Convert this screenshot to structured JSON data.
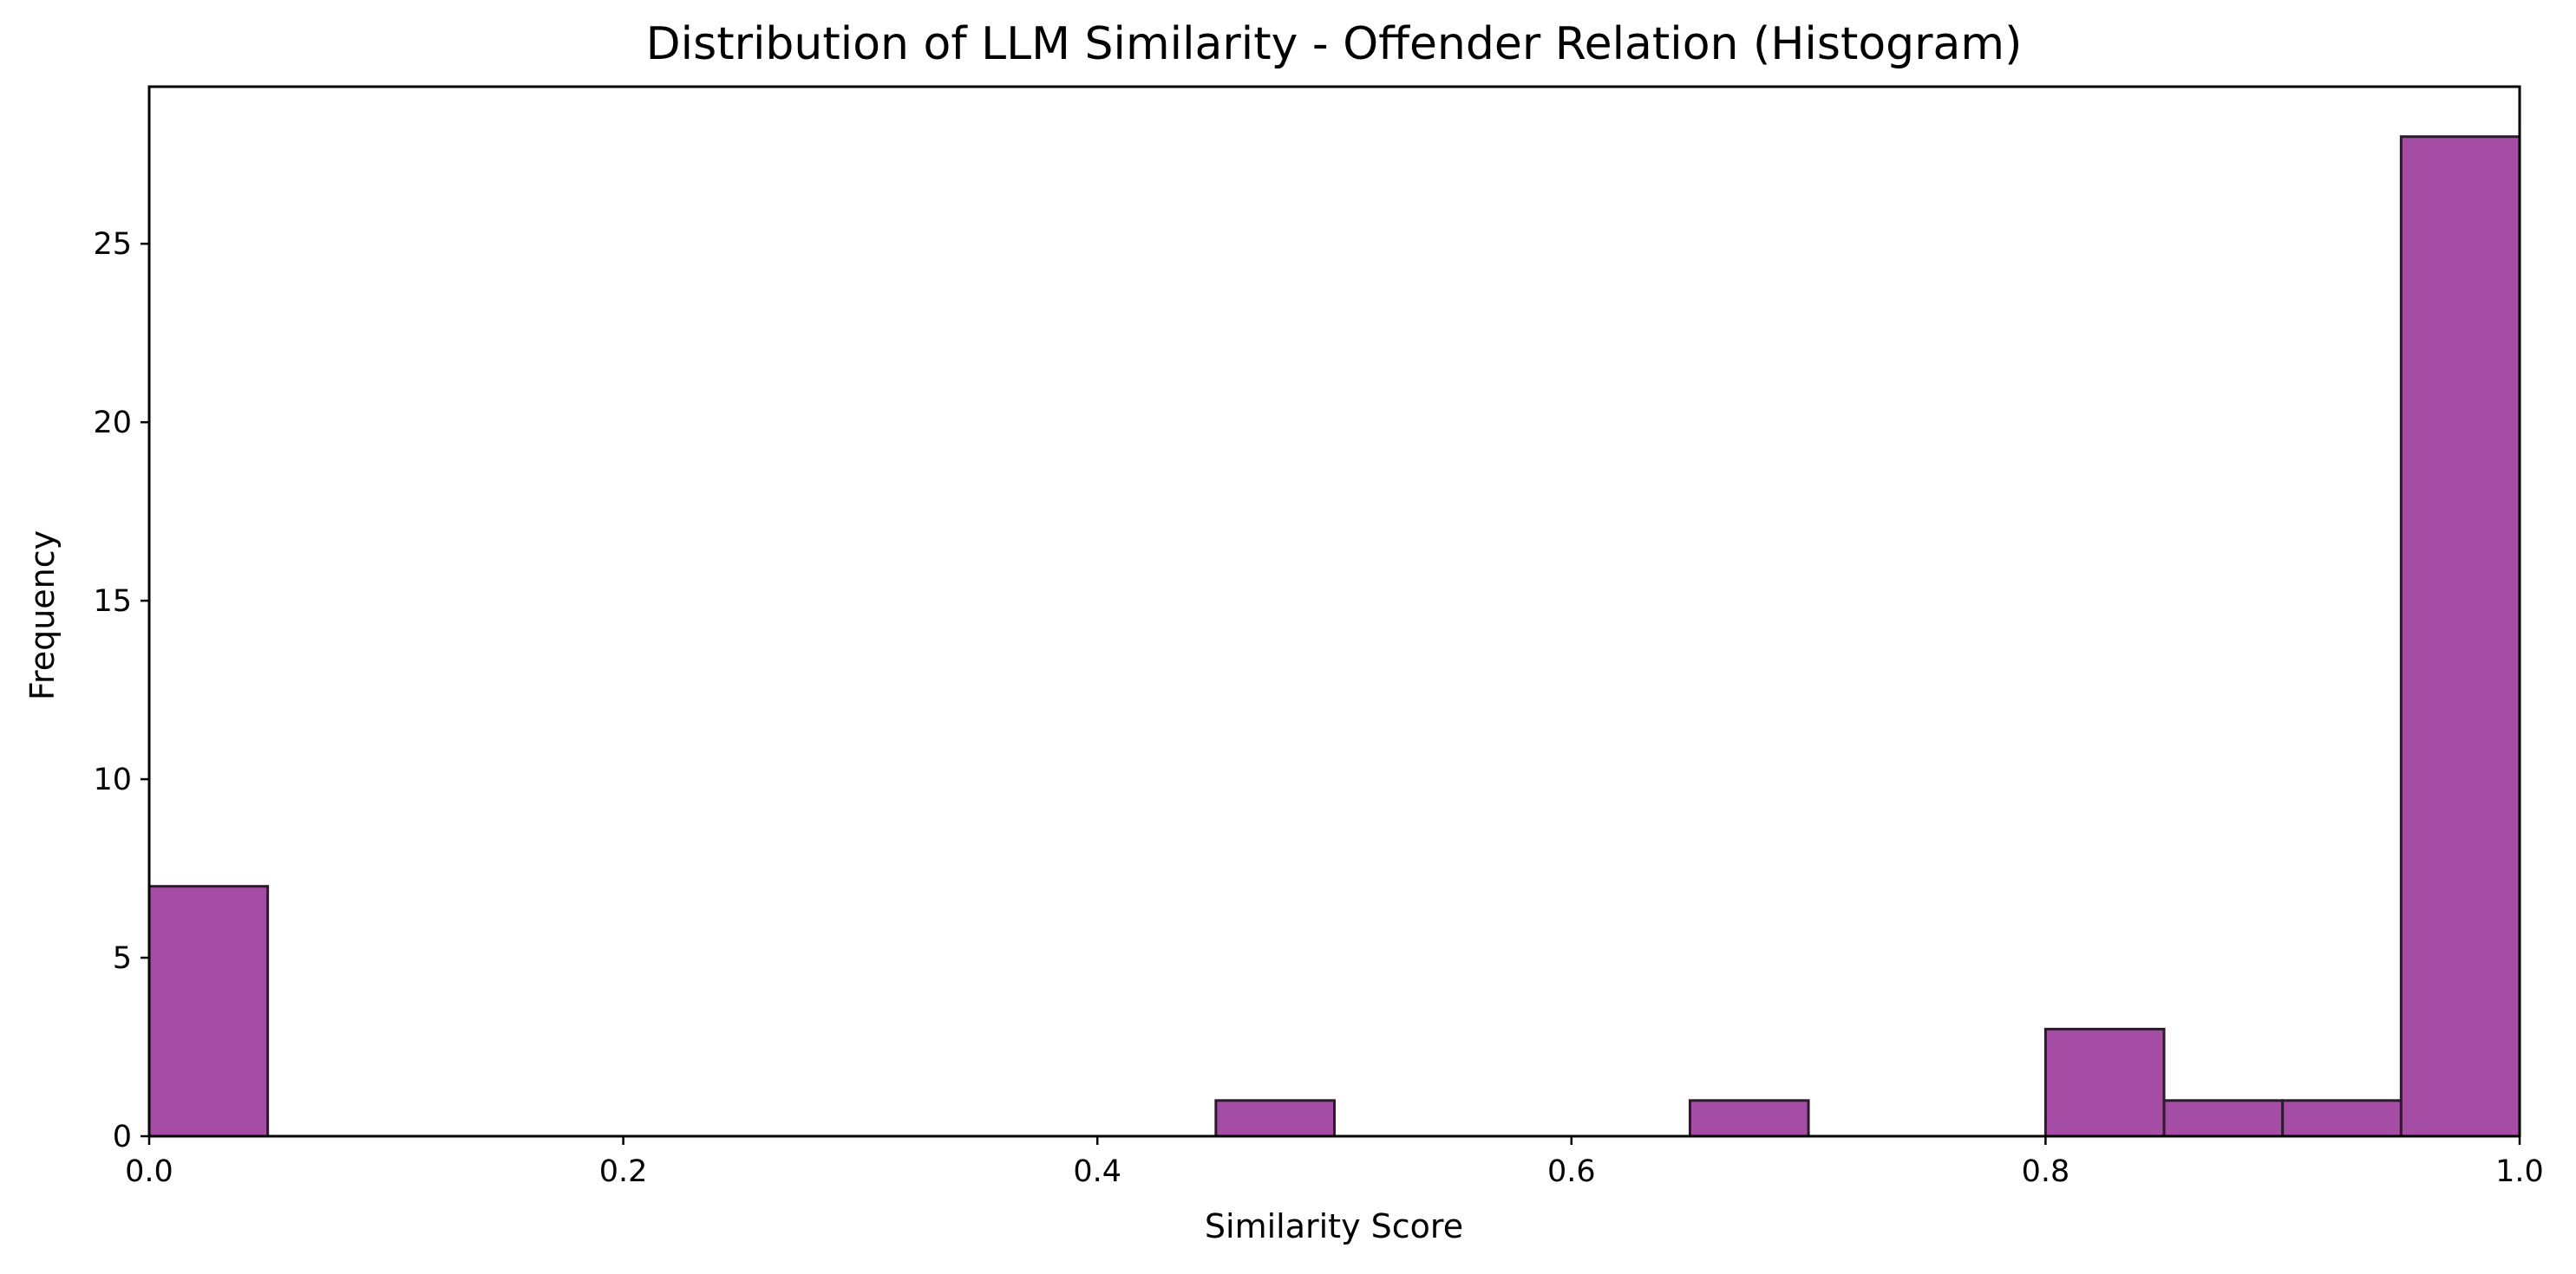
{
  "chart_data": {
    "type": "bar",
    "title": "Distribution of LLM Similarity - Offender Relation (Histogram)",
    "xlabel": "Similarity Score",
    "ylabel": "Frequency",
    "xlim": [
      0.0,
      1.0
    ],
    "ylim": [
      0,
      29.4
    ],
    "xticks": [
      "0.0",
      "0.2",
      "0.4",
      "0.6",
      "0.8",
      "1.0"
    ],
    "yticks": [
      "0",
      "5",
      "10",
      "15",
      "20",
      "25"
    ],
    "bin_edges": [
      0.0,
      0.05,
      0.1,
      0.15,
      0.2,
      0.25,
      0.3,
      0.35,
      0.4,
      0.45,
      0.5,
      0.55,
      0.6,
      0.65,
      0.7,
      0.75,
      0.8,
      0.85,
      0.9,
      0.95,
      1.0
    ],
    "counts": [
      7,
      0,
      0,
      0,
      0,
      0,
      0,
      0,
      0,
      1,
      0,
      0,
      0,
      1,
      0,
      0,
      3,
      1,
      1,
      28
    ],
    "bar_color": "#a54ca5",
    "edge_color": "#2d1a2d",
    "grid": false,
    "legend": "none"
  }
}
